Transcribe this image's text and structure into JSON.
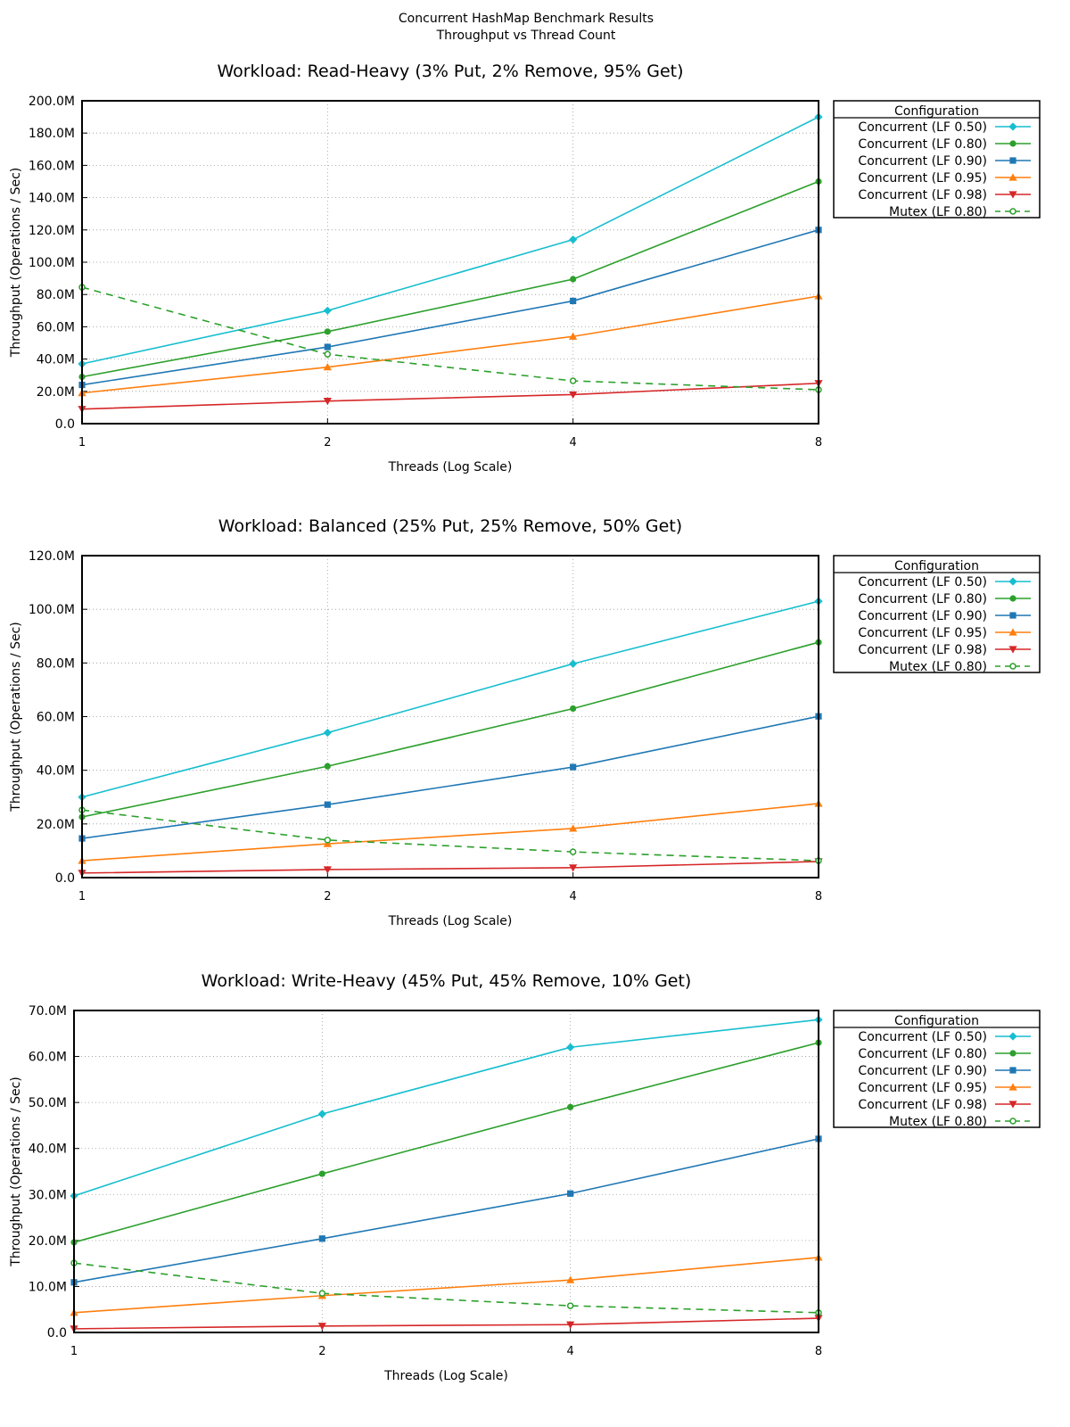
{
  "figure": {
    "title": "Concurrent HashMap Benchmark Results",
    "subtitle": "Throughput vs Thread Count"
  },
  "colors": {
    "Concurrent (LF 0.50)": "#17becf",
    "Concurrent (LF 0.80)": "#2ca02c",
    "Concurrent (LF 0.90)": "#1f77b4",
    "Concurrent (LF 0.95)": "#ff7f0e",
    "Concurrent (LF 0.98)": "#d62728",
    "Mutex (LF 0.80)": "#2ca02c"
  },
  "markers": {
    "Concurrent (LF 0.50)": "diamond",
    "Concurrent (LF 0.80)": "circle",
    "Concurrent (LF 0.90)": "square",
    "Concurrent (LF 0.95)": "triangle-up",
    "Concurrent (LF 0.98)": "triangle-down",
    "Mutex (LF 0.80)": "open-circle-dashed"
  },
  "chart_data": [
    {
      "type": "line",
      "title": "Workload: Read-Heavy (3% Put, 2% Remove, 95% Get)",
      "xlabel": "Threads (Log Scale)",
      "ylabel": "Throughput (Operations / Sec)",
      "xscale": "log2",
      "x": [
        1,
        2,
        4,
        8
      ],
      "xticks": [
        "1",
        "2",
        "4",
        "8"
      ],
      "ylim": [
        0,
        200000000
      ],
      "yticks": [
        "0.0",
        "20.0M",
        "40.0M",
        "60.0M",
        "80.0M",
        "100.0M",
        "120.0M",
        "140.0M",
        "160.0M",
        "180.0M",
        "200.0M"
      ],
      "grid": "dotted",
      "legend_title": "Configuration",
      "legend_position": "outside-right",
      "series": [
        {
          "name": "Concurrent (LF 0.50)",
          "values": [
            37000000,
            70000000,
            114000000,
            190000000
          ]
        },
        {
          "name": "Concurrent (LF 0.80)",
          "values": [
            29000000,
            57000000,
            89500000,
            150000000
          ]
        },
        {
          "name": "Concurrent (LF 0.90)",
          "values": [
            24000000,
            47500000,
            76000000,
            120000000
          ]
        },
        {
          "name": "Concurrent (LF 0.95)",
          "values": [
            19000000,
            35000000,
            54000000,
            79000000
          ]
        },
        {
          "name": "Concurrent (LF 0.98)",
          "values": [
            9000000,
            14000000,
            18000000,
            25000000
          ]
        },
        {
          "name": "Mutex (LF 0.80)",
          "values": [
            84500000,
            43000000,
            26500000,
            21000000
          ]
        }
      ]
    },
    {
      "type": "line",
      "title": "Workload: Balanced (25% Put, 25% Remove, 50% Get)",
      "xlabel": "Threads (Log Scale)",
      "ylabel": "Throughput (Operations / Sec)",
      "xscale": "log2",
      "x": [
        1,
        2,
        4,
        8
      ],
      "xticks": [
        "1",
        "2",
        "4",
        "8"
      ],
      "ylim": [
        0,
        120000000
      ],
      "yticks": [
        "0.0",
        "20.0M",
        "40.0M",
        "60.0M",
        "80.0M",
        "100.0M",
        "120.0M"
      ],
      "grid": "dotted",
      "legend_title": "Configuration",
      "legend_position": "outside-right",
      "series": [
        {
          "name": "Concurrent (LF 0.50)",
          "values": [
            30000000,
            54000000,
            79700000,
            103000000
          ]
        },
        {
          "name": "Concurrent (LF 0.80)",
          "values": [
            22600000,
            41500000,
            63000000,
            87700000
          ]
        },
        {
          "name": "Concurrent (LF 0.90)",
          "values": [
            14600000,
            27200000,
            41200000,
            60100000
          ]
        },
        {
          "name": "Concurrent (LF 0.95)",
          "values": [
            6300000,
            12600000,
            18300000,
            27600000
          ]
        },
        {
          "name": "Concurrent (LF 0.98)",
          "values": [
            1700000,
            3000000,
            3700000,
            6000000
          ]
        },
        {
          "name": "Mutex (LF 0.80)",
          "values": [
            25200000,
            14000000,
            9600000,
            6300000
          ]
        }
      ]
    },
    {
      "type": "line",
      "title": "Workload: Write-Heavy (45% Put, 45% Remove, 10% Get)",
      "xlabel": "Threads (Log Scale)",
      "ylabel": "Throughput (Operations / Sec)",
      "xscale": "log2",
      "x": [
        1,
        2,
        4,
        8
      ],
      "xticks": [
        "1",
        "2",
        "4",
        "8"
      ],
      "ylim": [
        0,
        70000000
      ],
      "yticks": [
        "0.0",
        "10.0M",
        "20.0M",
        "30.0M",
        "40.0M",
        "50.0M",
        "60.0M",
        "70.0M"
      ],
      "grid": "dotted",
      "legend_title": "Configuration",
      "legend_position": "outside-right",
      "series": [
        {
          "name": "Concurrent (LF 0.50)",
          "values": [
            29700000,
            47500000,
            62000000,
            68000000
          ]
        },
        {
          "name": "Concurrent (LF 0.80)",
          "values": [
            19600000,
            34500000,
            49000000,
            63000000
          ]
        },
        {
          "name": "Concurrent (LF 0.90)",
          "values": [
            10900000,
            20400000,
            30200000,
            42100000
          ]
        },
        {
          "name": "Concurrent (LF 0.95)",
          "values": [
            4300000,
            8000000,
            11400000,
            16300000
          ]
        },
        {
          "name": "Concurrent (LF 0.98)",
          "values": [
            800000,
            1400000,
            1700000,
            3100000
          ]
        },
        {
          "name": "Mutex (LF 0.80)",
          "values": [
            15100000,
            8500000,
            5800000,
            4300000
          ]
        }
      ]
    }
  ]
}
